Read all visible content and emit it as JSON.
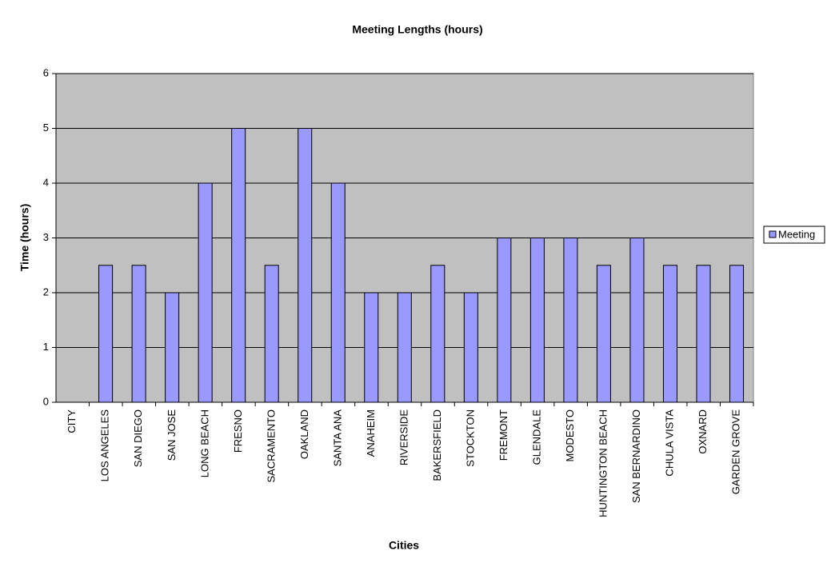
{
  "chart_data": {
    "type": "bar",
    "title": "Meeting Lengths (hours)",
    "x_label": "Cities",
    "y_label": "Time (hours)",
    "categories": [
      "CITY",
      "LOS ANGELES",
      "SAN DIEGO",
      "SAN JOSE",
      "LONG BEACH",
      "FRESNO",
      "SACRAMENTO",
      "OAKLAND",
      "SANTA ANA",
      "ANAHEIM",
      "RIVERSIDE",
      "BAKERSFIELD",
      "STOCKTON",
      "FREMONT",
      "GLENDALE",
      "MODESTO",
      "HUNTINGTON BEACH",
      "SAN BERNARDINO",
      "CHULA VISTA",
      "OXNARD",
      "GARDEN GROVE"
    ],
    "series": [
      {
        "name": "Meeting",
        "color": "#9999ff",
        "values": [
          null,
          2.5,
          2.5,
          2,
          4,
          5,
          2.5,
          5,
          4,
          2,
          2,
          2.5,
          2,
          3,
          3,
          3,
          2.5,
          3,
          2.5,
          2.5,
          2.5
        ]
      }
    ],
    "ylim": [
      0,
      6
    ],
    "yticks": [
      0,
      1,
      2,
      3,
      4,
      5,
      6
    ],
    "grid": true,
    "legend": "right"
  }
}
